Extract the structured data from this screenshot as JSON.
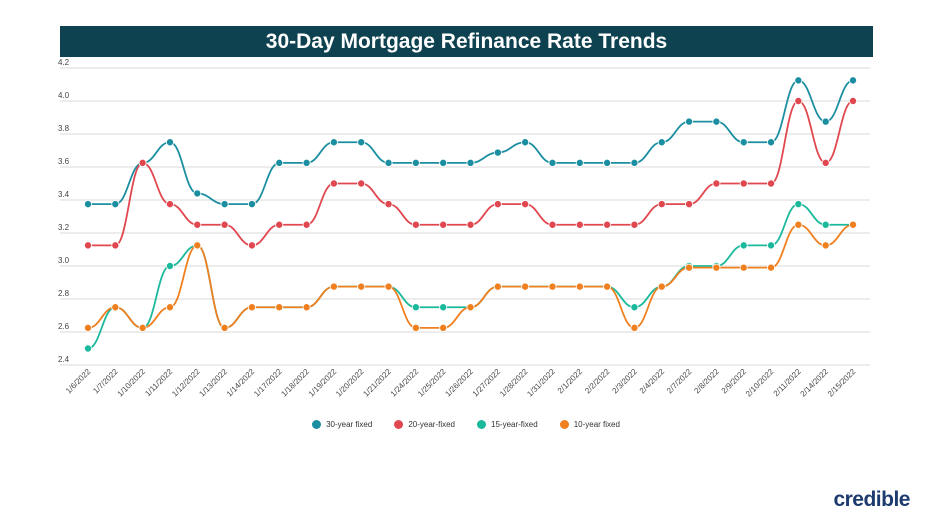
{
  "chart_data": {
    "type": "line",
    "title": "30-Day Mortgage Refinance Rate Trends",
    "xlabel": "",
    "ylabel": "",
    "ylim": [
      2.4,
      4.2
    ],
    "yticks": [
      "2.4",
      "2.6",
      "2.8",
      "3.0",
      "3.2",
      "3.4",
      "3.6",
      "3.8",
      "4.0",
      "4.2"
    ],
    "grid": true,
    "legend_position": "bottom",
    "categories": [
      "1/6/2022",
      "1/7/2022",
      "1/10/2022",
      "1/11/2022",
      "1/12/2022",
      "1/13/2022",
      "1/14/2022",
      "1/17/2022",
      "1/18/2022",
      "1/19/2022",
      "1/20/2022",
      "1/21/2022",
      "1/24/2022",
      "1/25/2022",
      "1/26/2022",
      "1/27/2022",
      "1/28/2022",
      "1/31/2022",
      "2/1/2022",
      "2/2/2022",
      "2/3/2022",
      "2/4/2022",
      "2/7/2022",
      "2/8/2022",
      "2/9/2022",
      "2/10/2022",
      "2/11/2022",
      "2/14/2022",
      "2/15/2022"
    ],
    "series": [
      {
        "name": "30-year fixed",
        "color": "#1b8fa1",
        "values": [
          3.375,
          3.375,
          3.625,
          3.75,
          3.44,
          3.375,
          3.375,
          3.625,
          3.625,
          3.75,
          3.75,
          3.625,
          3.625,
          3.625,
          3.625,
          3.6875,
          3.75,
          3.625,
          3.625,
          3.625,
          3.625,
          3.75,
          3.875,
          3.875,
          3.75,
          3.75,
          4.125,
          3.875,
          4.125
        ]
      },
      {
        "name": "20-year-fixed",
        "color": "#e0474f",
        "values": [
          3.125,
          3.125,
          3.625,
          3.375,
          3.25,
          3.25,
          3.125,
          3.25,
          3.25,
          3.5,
          3.5,
          3.375,
          3.25,
          3.25,
          3.25,
          3.375,
          3.375,
          3.25,
          3.25,
          3.25,
          3.25,
          3.375,
          3.375,
          3.5,
          3.5,
          3.5,
          4.0,
          3.625,
          4.0
        ]
      },
      {
        "name": "15-year-fixed",
        "color": "#1bb99c",
        "values": [
          2.5,
          2.75,
          2.625,
          3.0,
          3.125,
          2.625,
          2.75,
          2.75,
          2.75,
          2.875,
          2.875,
          2.875,
          2.75,
          2.75,
          2.75,
          2.875,
          2.875,
          2.875,
          2.875,
          2.875,
          2.75,
          2.875,
          3.0,
          3.0,
          3.125,
          3.125,
          3.375,
          3.25,
          3.25
        ]
      },
      {
        "name": "10-year fixed",
        "color": "#f07f1f",
        "values": [
          2.625,
          2.75,
          2.625,
          2.75,
          3.125,
          2.625,
          2.75,
          2.75,
          2.75,
          2.875,
          2.875,
          2.875,
          2.625,
          2.625,
          2.75,
          2.875,
          2.875,
          2.875,
          2.875,
          2.875,
          2.625,
          2.875,
          2.99,
          2.99,
          2.99,
          2.99,
          3.25,
          3.125,
          3.25
        ]
      }
    ]
  },
  "brand": {
    "logo_text": "credible",
    "logo_color": "#1d3b6e",
    "title_bar_color": "#0f4250"
  }
}
